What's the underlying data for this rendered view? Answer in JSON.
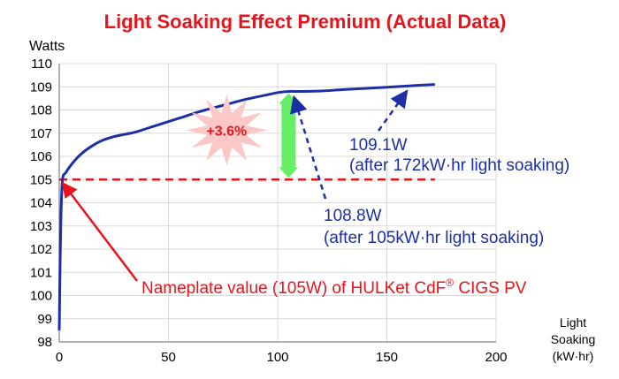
{
  "chart_data": {
    "type": "line",
    "title": "Light Soaking Effect Premium (Actual Data)",
    "ylabel": "Watts",
    "xlabel_lines": [
      "Light",
      "Soaking",
      "(kW·hr)"
    ],
    "xlim": [
      0,
      200
    ],
    "ylim": [
      98,
      110
    ],
    "xticks": [
      0,
      50,
      100,
      150,
      200
    ],
    "yticks": [
      98,
      99,
      100,
      101,
      102,
      103,
      104,
      105,
      106,
      107,
      108,
      109,
      110
    ],
    "grid": true,
    "reference_line": {
      "y": 105,
      "x_range": [
        0,
        172
      ],
      "color": "#e8141b"
    },
    "series": [
      {
        "color": "#1c2fa6",
        "x": [
          0,
          0.4,
          0.8,
          1.5,
          3,
          6,
          10,
          15,
          20,
          25,
          30,
          35,
          45,
          55,
          65,
          75,
          85,
          95,
          100,
          105,
          110,
          120,
          130,
          140,
          150,
          160,
          172
        ],
        "y": [
          98.5,
          101.5,
          103.5,
          105.0,
          105.3,
          105.7,
          106.1,
          106.45,
          106.7,
          106.85,
          106.95,
          107.05,
          107.35,
          107.65,
          107.95,
          108.2,
          108.45,
          108.65,
          108.75,
          108.8,
          108.8,
          108.82,
          108.88,
          108.93,
          108.98,
          109.04,
          109.1
        ]
      }
    ],
    "annotations": {
      "premium": {
        "label": "+3.6%",
        "x": 105,
        "y_from": 105,
        "y_to": 108.8,
        "color": "#66ee66",
        "burst_color": "#fbc7c7"
      },
      "point_172": {
        "line1": "109.1W",
        "line2": "(after 172kW·hr light soaking)",
        "x": 160,
        "y": 109.05
      },
      "point_105": {
        "line1": "108.8W",
        "line2": "(after 105kW·hr light soaking)",
        "x": 105,
        "y": 108.8
      },
      "nameplate": {
        "text_before": "Nameplate value (105W) of HULKet CdF",
        "sup": "®",
        "text_after": " CIGS PV",
        "x": 0,
        "y": 105
      }
    }
  }
}
